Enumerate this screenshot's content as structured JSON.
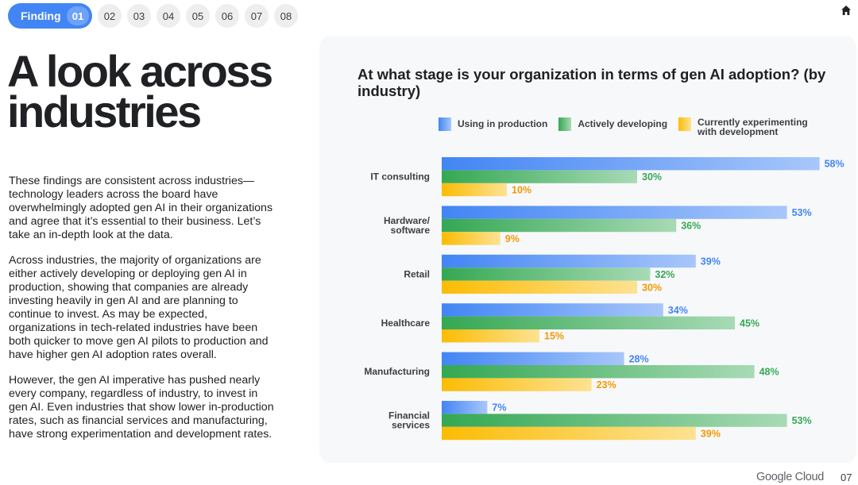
{
  "nav": {
    "finding_label": "Finding",
    "current": "01",
    "others": [
      "02",
      "03",
      "04",
      "05",
      "06",
      "07",
      "08"
    ]
  },
  "page_title": "A look across industries",
  "body_paragraphs": [
    "These findings are consistent across industries—technology leaders across the board have overwhelmingly adopted gen AI in their organizations and agree that it’s essential to their business. Let’s take an in-depth look at the data.",
    "Across industries, the majority of organizations are either actively developing or deploying gen AI in production, showing that companies are already investing heavily in gen AI and are planning to continue to invest. As may be expected, organizations in tech-related industries have been both quicker to move gen AI pilots to production and have higher gen AI adoption rates overall.",
    "However, the gen AI imperative has pushed nearly every company, regardless of industry, to invest in gen AI. Even industries that show lower in-production rates, such as financial services and manufacturing, have strong experimentation and development rates."
  ],
  "footer": {
    "brand": "Google Cloud",
    "page_number": "07"
  },
  "colors": {
    "blue": "#4285f4",
    "blue_light": "#a8c7fa",
    "green": "#34a853",
    "green_light": "#a8dab5",
    "yellow": "#fbbc04",
    "yellow_light": "#fde293",
    "blue_text": "#4285f4",
    "green_text": "#34a853",
    "yellow_text": "#f29900"
  },
  "chart_data": {
    "type": "bar",
    "orientation": "horizontal",
    "title": "At what stage is your organization in terms of gen AI adoption? (by industry)",
    "categories": [
      "IT consulting",
      "Hardware/ software",
      "Retail",
      "Healthcare",
      "Manufacturing",
      "Financial services"
    ],
    "category_lines": [
      [
        "IT consulting"
      ],
      [
        "Hardware/",
        "software"
      ],
      [
        "Retail"
      ],
      [
        "Healthcare"
      ],
      [
        "Manufacturing"
      ],
      [
        "Financial",
        "services"
      ]
    ],
    "series": [
      {
        "name": "Using in production",
        "values": [
          58,
          53,
          39,
          34,
          28,
          7
        ]
      },
      {
        "name": "Actively developing",
        "values": [
          30,
          36,
          32,
          45,
          48,
          53
        ]
      },
      {
        "name": "Currently experimenting with development",
        "values": [
          10,
          9,
          30,
          15,
          23,
          39
        ]
      }
    ],
    "unit": "%",
    "xlim": [
      0,
      100
    ],
    "legend_position": "top"
  }
}
